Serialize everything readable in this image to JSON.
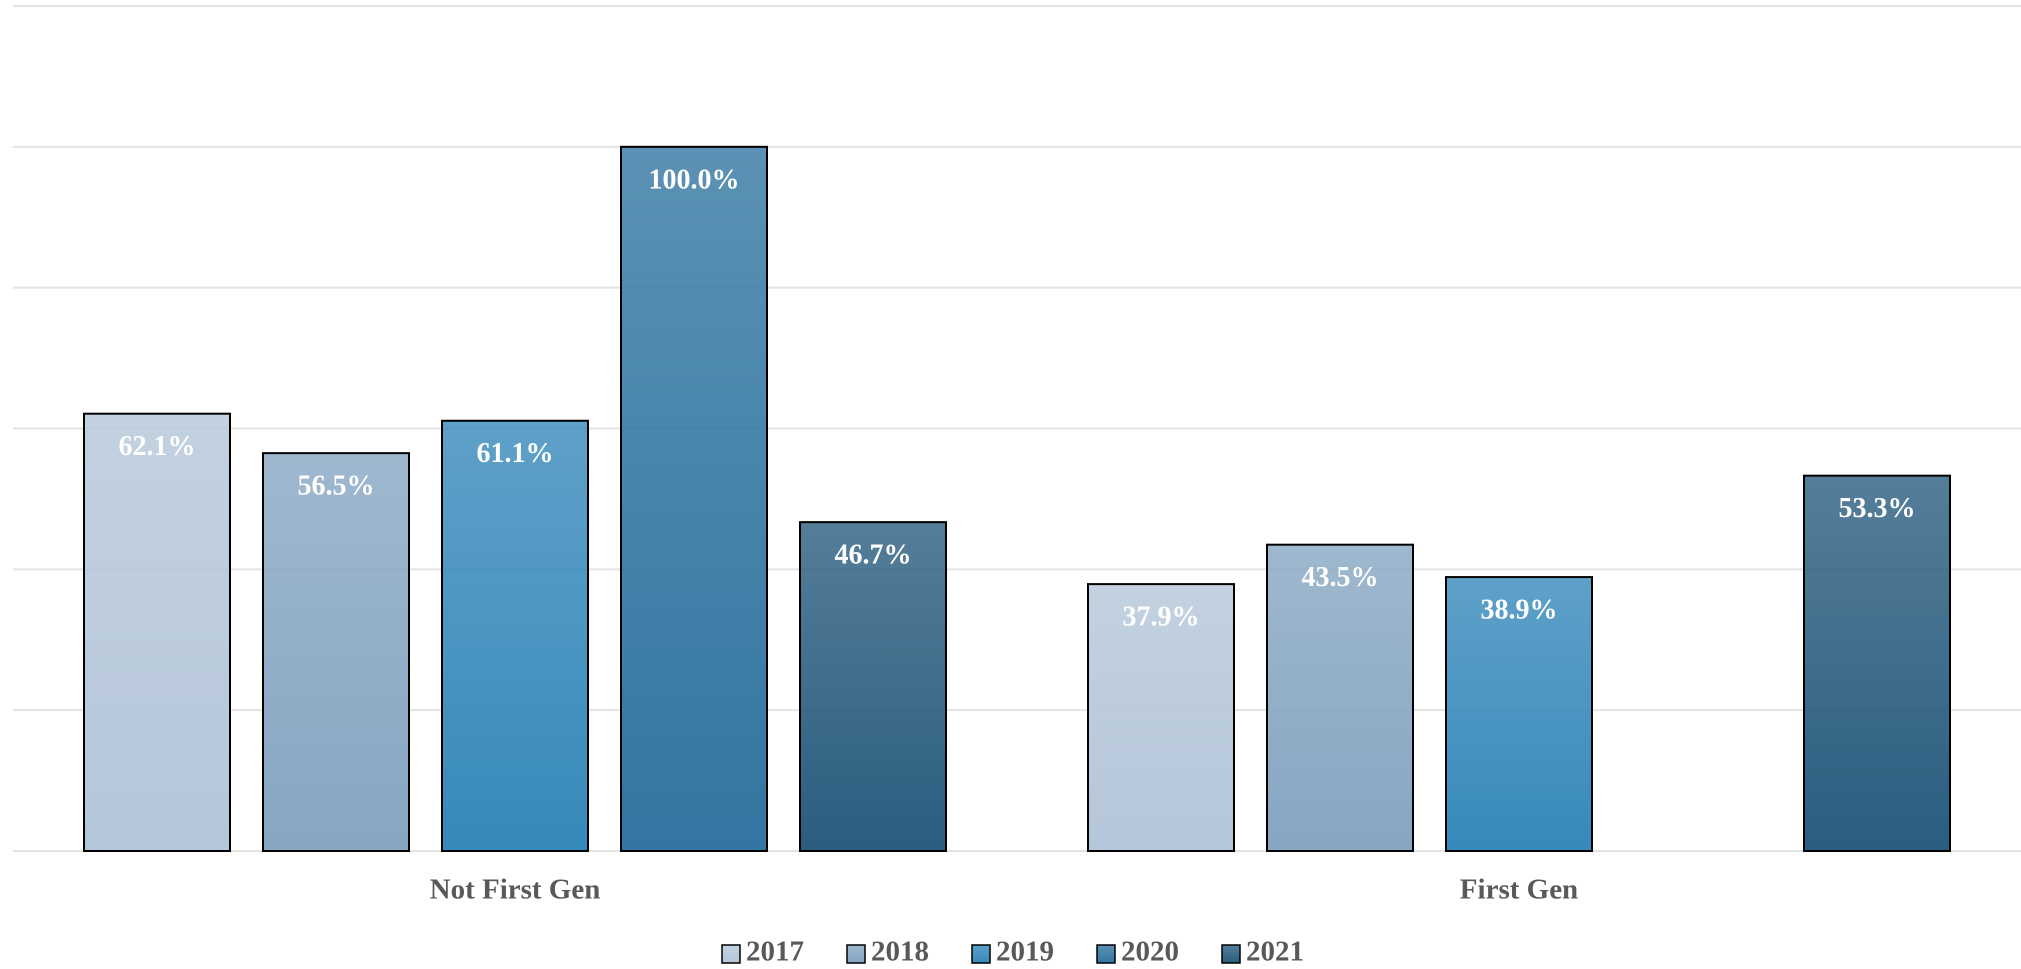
{
  "chart_data": {
    "type": "bar",
    "categories": [
      "Not First Gen",
      "First Gen"
    ],
    "series": [
      {
        "name": "2017",
        "color": "#b4c6d9",
        "values": [
          62.1,
          37.9
        ],
        "value_labels": [
          "62.1%",
          "37.9%"
        ]
      },
      {
        "name": "2018",
        "color": "#86a6c2",
        "values": [
          56.5,
          43.5
        ],
        "value_labels": [
          "56.5%",
          "43.5%"
        ]
      },
      {
        "name": "2019",
        "color": "#3689bb",
        "values": [
          61.1,
          38.9
        ],
        "value_labels": [
          "61.1%",
          "38.9%"
        ]
      },
      {
        "name": "2020",
        "color": "#3276a1",
        "values": [
          100.0,
          null
        ],
        "value_labels": [
          "100.0%",
          null
        ]
      },
      {
        "name": "2021",
        "color": "#2a5d7f",
        "values": [
          46.7,
          53.3
        ],
        "value_labels": [
          "46.7%",
          "53.3%"
        ]
      }
    ],
    "ylim": [
      0,
      120
    ],
    "yticks": [
      0,
      20,
      40,
      60,
      80,
      100,
      120
    ],
    "grid": true,
    "legend": "bottom"
  }
}
